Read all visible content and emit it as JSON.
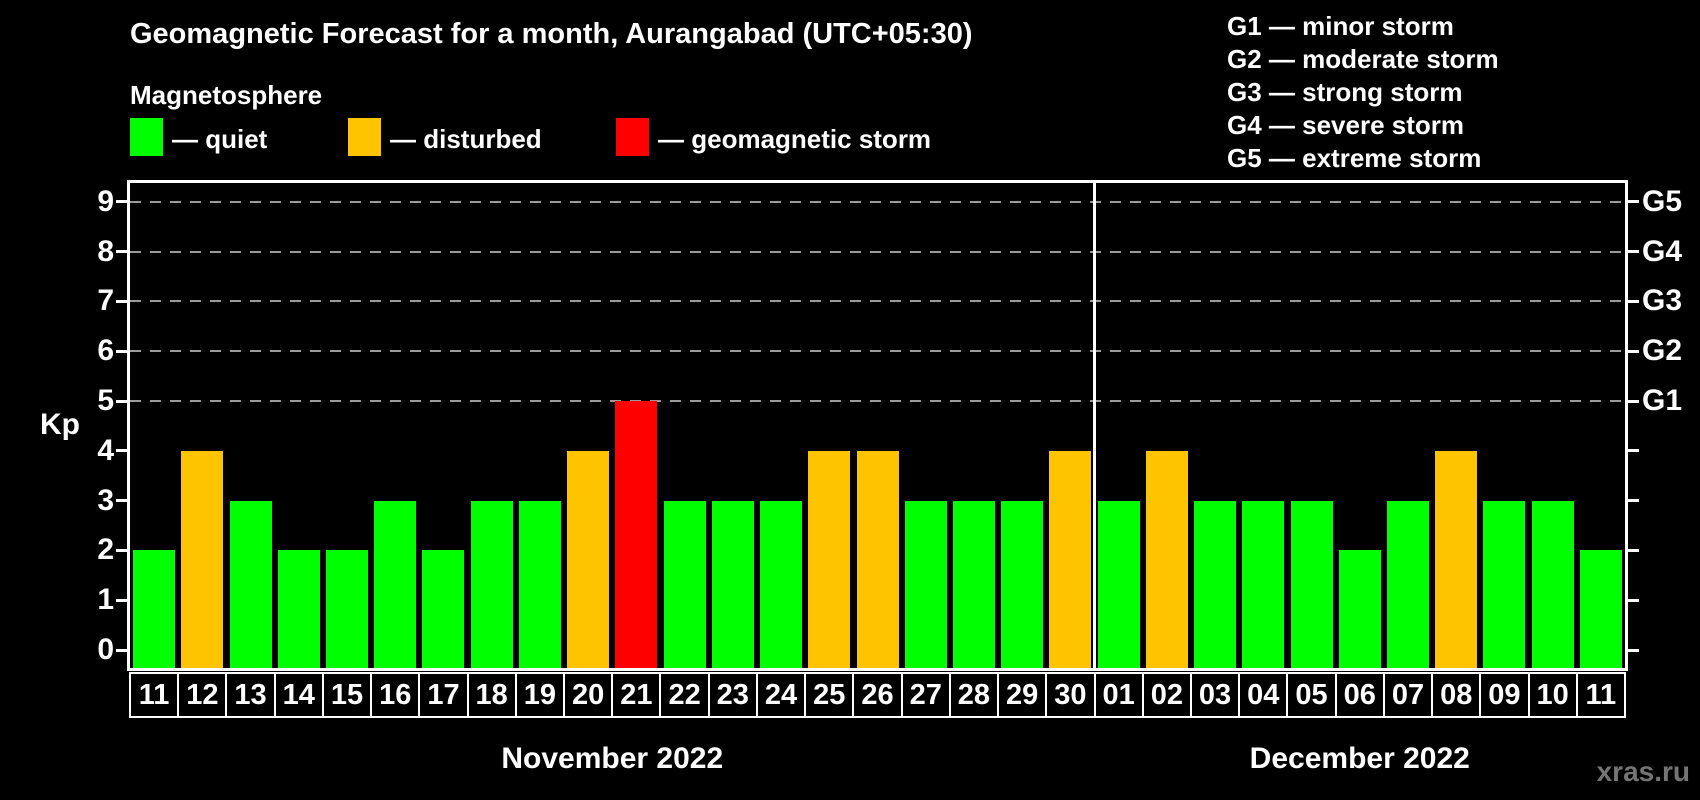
{
  "title": "Geomagnetic Forecast for a month, Aurangabad (UTC+05:30)",
  "subtitle": "Magnetosphere",
  "legend": {
    "items": [
      {
        "status": "quiet",
        "label": "— quiet",
        "color": "#00ff00"
      },
      {
        "status": "disturbed",
        "label": "— disturbed",
        "color": "#ffc400"
      },
      {
        "status": "storm",
        "label": "— geomagnetic storm",
        "color": "#ff0000"
      }
    ]
  },
  "g_legend": [
    "G1 — minor storm",
    "G2 — moderate storm",
    "G3 — strong storm",
    "G4 — severe storm",
    "G5 — extreme storm"
  ],
  "axes": {
    "y_label": "Kp",
    "y_ticks": [
      0,
      1,
      2,
      3,
      4,
      5,
      6,
      7,
      8,
      9
    ],
    "right_labels": [
      {
        "kp": 5,
        "label": "G1"
      },
      {
        "kp": 6,
        "label": "G2"
      },
      {
        "kp": 7,
        "label": "G3"
      },
      {
        "kp": 8,
        "label": "G4"
      },
      {
        "kp": 9,
        "label": "G5"
      }
    ]
  },
  "months": [
    {
      "label": "November 2022",
      "days": 20
    },
    {
      "label": "December 2022",
      "days": 11
    }
  ],
  "watermark": "xras.ru",
  "chart_data": {
    "type": "bar",
    "title": "Geomagnetic Forecast for a month, Aurangabad (UTC+05:30)",
    "xlabel": "",
    "ylabel": "Kp",
    "ylim": [
      0,
      9
    ],
    "grid": "dashed horizontal at Kp 5-9 only",
    "legend_position": "top-left and top-right",
    "gridlines_kp": [
      5,
      6,
      7,
      8,
      9
    ],
    "month_divider_after_index": 19,
    "categories": [
      "11",
      "12",
      "13",
      "14",
      "15",
      "16",
      "17",
      "18",
      "19",
      "20",
      "21",
      "22",
      "23",
      "24",
      "25",
      "26",
      "27",
      "28",
      "29",
      "30",
      "01",
      "02",
      "03",
      "04",
      "05",
      "06",
      "07",
      "08",
      "09",
      "10",
      "11"
    ],
    "values": [
      2,
      4,
      3,
      2,
      2,
      3,
      2,
      3,
      3,
      4,
      5,
      3,
      3,
      3,
      4,
      4,
      3,
      3,
      3,
      4,
      3,
      4,
      3,
      3,
      3,
      2,
      3,
      4,
      3,
      3,
      2
    ],
    "statuses": [
      "quiet",
      "disturbed",
      "quiet",
      "quiet",
      "quiet",
      "quiet",
      "quiet",
      "quiet",
      "quiet",
      "disturbed",
      "storm",
      "quiet",
      "quiet",
      "quiet",
      "disturbed",
      "disturbed",
      "quiet",
      "quiet",
      "quiet",
      "disturbed",
      "quiet",
      "disturbed",
      "quiet",
      "quiet",
      "quiet",
      "quiet",
      "quiet",
      "disturbed",
      "quiet",
      "quiet",
      "quiet"
    ],
    "colors": {
      "quiet": "#00ff00",
      "disturbed": "#ffc400",
      "storm": "#ff0000"
    }
  }
}
